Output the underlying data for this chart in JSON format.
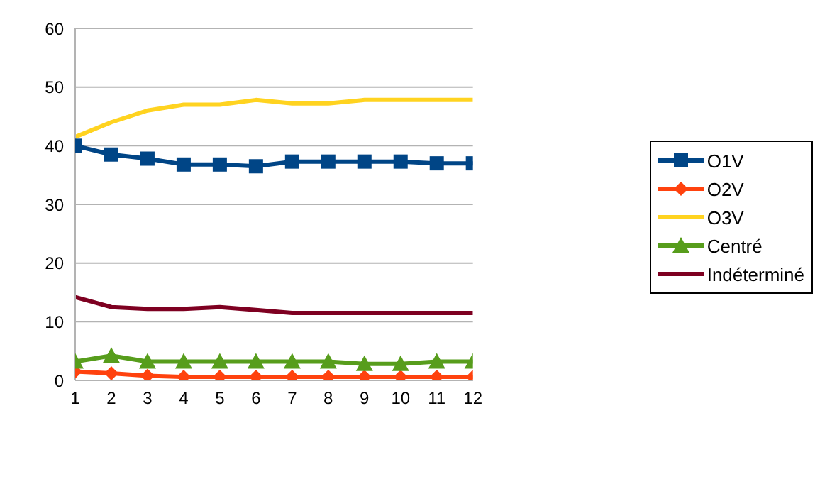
{
  "chart_data": {
    "type": "line",
    "x": [
      1,
      2,
      3,
      4,
      5,
      6,
      7,
      8,
      9,
      10,
      11,
      12
    ],
    "xlim": [
      1,
      12
    ],
    "xticks": [
      1,
      2,
      3,
      4,
      5,
      6,
      7,
      8,
      9,
      10,
      11,
      12
    ],
    "ylim": [
      0,
      60
    ],
    "yticks": [
      0,
      10,
      20,
      30,
      40,
      50,
      60
    ],
    "grid": "y",
    "legend": "right",
    "line_style": "solid",
    "series": [
      {
        "name": "O1V",
        "color": "#004586",
        "marker": "square",
        "values": [
          40,
          38.5,
          37.8,
          36.8,
          36.8,
          36.5,
          37.3,
          37.3,
          37.3,
          37.3,
          37,
          37
        ]
      },
      {
        "name": "O2V",
        "color": "#ff420e",
        "marker": "diamond",
        "values": [
          1.5,
          1.2,
          0.8,
          0.6,
          0.6,
          0.6,
          0.6,
          0.6,
          0.6,
          0.6,
          0.6,
          0.6
        ]
      },
      {
        "name": "O3V",
        "color": "#ffd320",
        "marker": "none",
        "values": [
          41.5,
          44,
          46,
          47,
          47,
          47.8,
          47.2,
          47.2,
          47.8,
          47.8,
          47.8,
          47.8
        ]
      },
      {
        "name": "Centré",
        "color": "#579d1c",
        "marker": "triangle",
        "values": [
          3.2,
          4.2,
          3.2,
          3.2,
          3.2,
          3.2,
          3.2,
          3.2,
          2.8,
          2.8,
          3.2,
          3.2
        ]
      },
      {
        "name": "Indéterminé",
        "color": "#7e0021",
        "marker": "none",
        "values": [
          14.2,
          12.5,
          12.2,
          12.2,
          12.5,
          12,
          11.5,
          11.5,
          11.5,
          11.5,
          11.5,
          11.5
        ]
      }
    ]
  }
}
